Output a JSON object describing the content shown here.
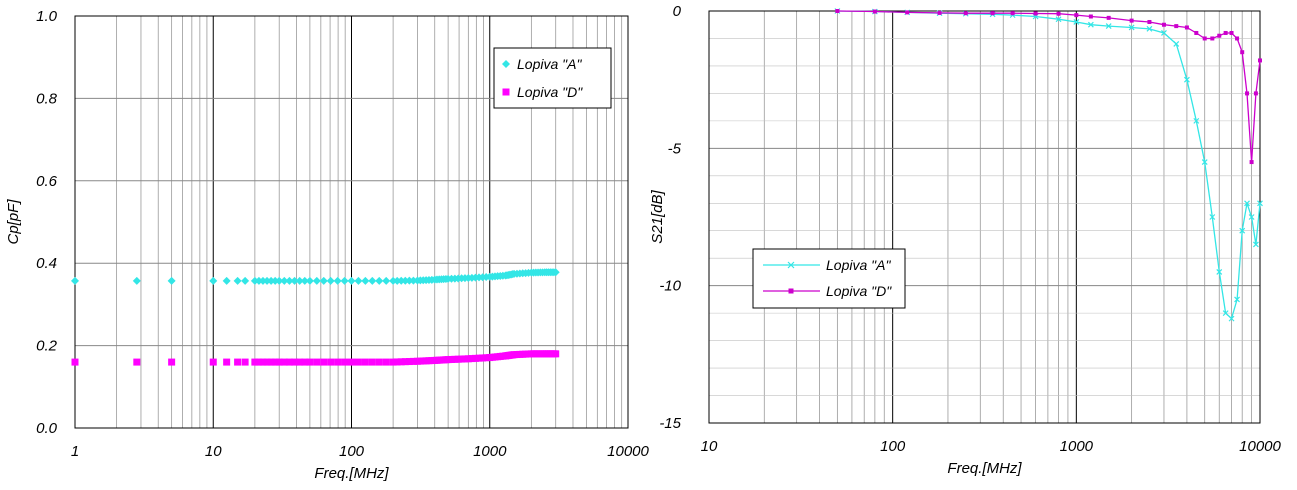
{
  "chart_data": [
    {
      "type": "scatter",
      "xscale": "log",
      "xlabel": "Freq.[MHz]",
      "ylabel": "Cp[pF]",
      "xlim": [
        1,
        10000
      ],
      "ylim": [
        0.0,
        1.0
      ],
      "x_ticks": [
        1,
        10,
        100,
        1000,
        10000
      ],
      "x_tick_labels": [
        "1",
        "10",
        "100",
        "1000",
        "10000"
      ],
      "y_ticks": [
        0.0,
        0.2,
        0.4,
        0.6,
        0.8,
        1.0
      ],
      "y_tick_labels": [
        "0.0",
        "0.2",
        "0.4",
        "0.6",
        "0.8",
        "1.0"
      ],
      "grid": true,
      "legend_position": "top-right",
      "series": [
        {
          "name": "Lopiva \"A\"",
          "color": "#33E6E6",
          "marker": "diamond",
          "x": [
            1,
            2.8,
            5,
            10,
            12.5,
            15,
            17,
            20,
            30,
            50,
            100,
            200,
            300,
            400,
            500,
            700,
            1000,
            1300,
            1500,
            2000,
            2500,
            3000
          ],
          "y": [
            0.357,
            0.357,
            0.357,
            0.357,
            0.357,
            0.357,
            0.357,
            0.357,
            0.357,
            0.357,
            0.357,
            0.357,
            0.358,
            0.36,
            0.362,
            0.364,
            0.367,
            0.37,
            0.374,
            0.377,
            0.378,
            0.378
          ]
        },
        {
          "name": "Lopiva \"D\"",
          "color": "#FF00FF",
          "marker": "square",
          "x": [
            1,
            2.8,
            5,
            10,
            12.5,
            15,
            17,
            20,
            30,
            50,
            100,
            200,
            300,
            400,
            500,
            700,
            1000,
            1300,
            1500,
            2000,
            2500,
            3000
          ],
          "y": [
            0.16,
            0.16,
            0.16,
            0.16,
            0.16,
            0.16,
            0.16,
            0.16,
            0.16,
            0.16,
            0.16,
            0.16,
            0.162,
            0.164,
            0.166,
            0.168,
            0.171,
            0.175,
            0.178,
            0.18,
            0.18,
            0.18
          ]
        }
      ]
    },
    {
      "type": "line",
      "xscale": "log",
      "xlabel": "Freq.[MHz]",
      "ylabel": "S21[dB]",
      "xlim": [
        10,
        10000
      ],
      "ylim": [
        -15,
        0
      ],
      "x_ticks": [
        10,
        100,
        1000,
        10000
      ],
      "x_tick_labels": [
        "10",
        "100",
        "1000",
        "10000"
      ],
      "y_ticks": [
        0,
        -5,
        -10,
        -15
      ],
      "y_tick_labels": [
        "0",
        "-5",
        "-10",
        "-15"
      ],
      "grid": true,
      "legend_position": "middle-left",
      "series": [
        {
          "name": "Lopiva \"A\"",
          "color": "#33E6E6",
          "marker": "x",
          "x": [
            50,
            80,
            120,
            180,
            250,
            350,
            450,
            600,
            800,
            1000,
            1200,
            1500,
            2000,
            2500,
            3000,
            3500,
            4000,
            4500,
            5000,
            5500,
            6000,
            6500,
            7000,
            7500,
            8000,
            8500,
            9000,
            9500,
            10000
          ],
          "y": [
            0,
            -0.02,
            -0.05,
            -0.08,
            -0.1,
            -0.12,
            -0.15,
            -0.2,
            -0.3,
            -0.4,
            -0.5,
            -0.55,
            -0.6,
            -0.65,
            -0.8,
            -1.2,
            -2.5,
            -4.0,
            -5.5,
            -7.5,
            -9.5,
            -11.0,
            -11.2,
            -10.5,
            -8.0,
            -7.0,
            -7.5,
            -8.5,
            -7.0
          ]
        },
        {
          "name": "Lopiva \"D\"",
          "color": "#CC00CC",
          "marker": "square",
          "x": [
            50,
            80,
            120,
            180,
            250,
            350,
            450,
            600,
            800,
            1000,
            1200,
            1500,
            2000,
            2500,
            3000,
            3500,
            4000,
            4500,
            5000,
            5500,
            6000,
            6500,
            7000,
            7500,
            8000,
            8500,
            9000,
            9500,
            10000
          ],
          "y": [
            0,
            -0.02,
            -0.05,
            -0.07,
            -0.08,
            -0.08,
            -0.08,
            -0.09,
            -0.1,
            -0.15,
            -0.2,
            -0.25,
            -0.35,
            -0.4,
            -0.5,
            -0.55,
            -0.6,
            -0.8,
            -1.0,
            -1.0,
            -0.9,
            -0.8,
            -0.8,
            -1.0,
            -1.5,
            -3.0,
            -5.5,
            -3.0,
            -1.8
          ]
        }
      ]
    }
  ]
}
